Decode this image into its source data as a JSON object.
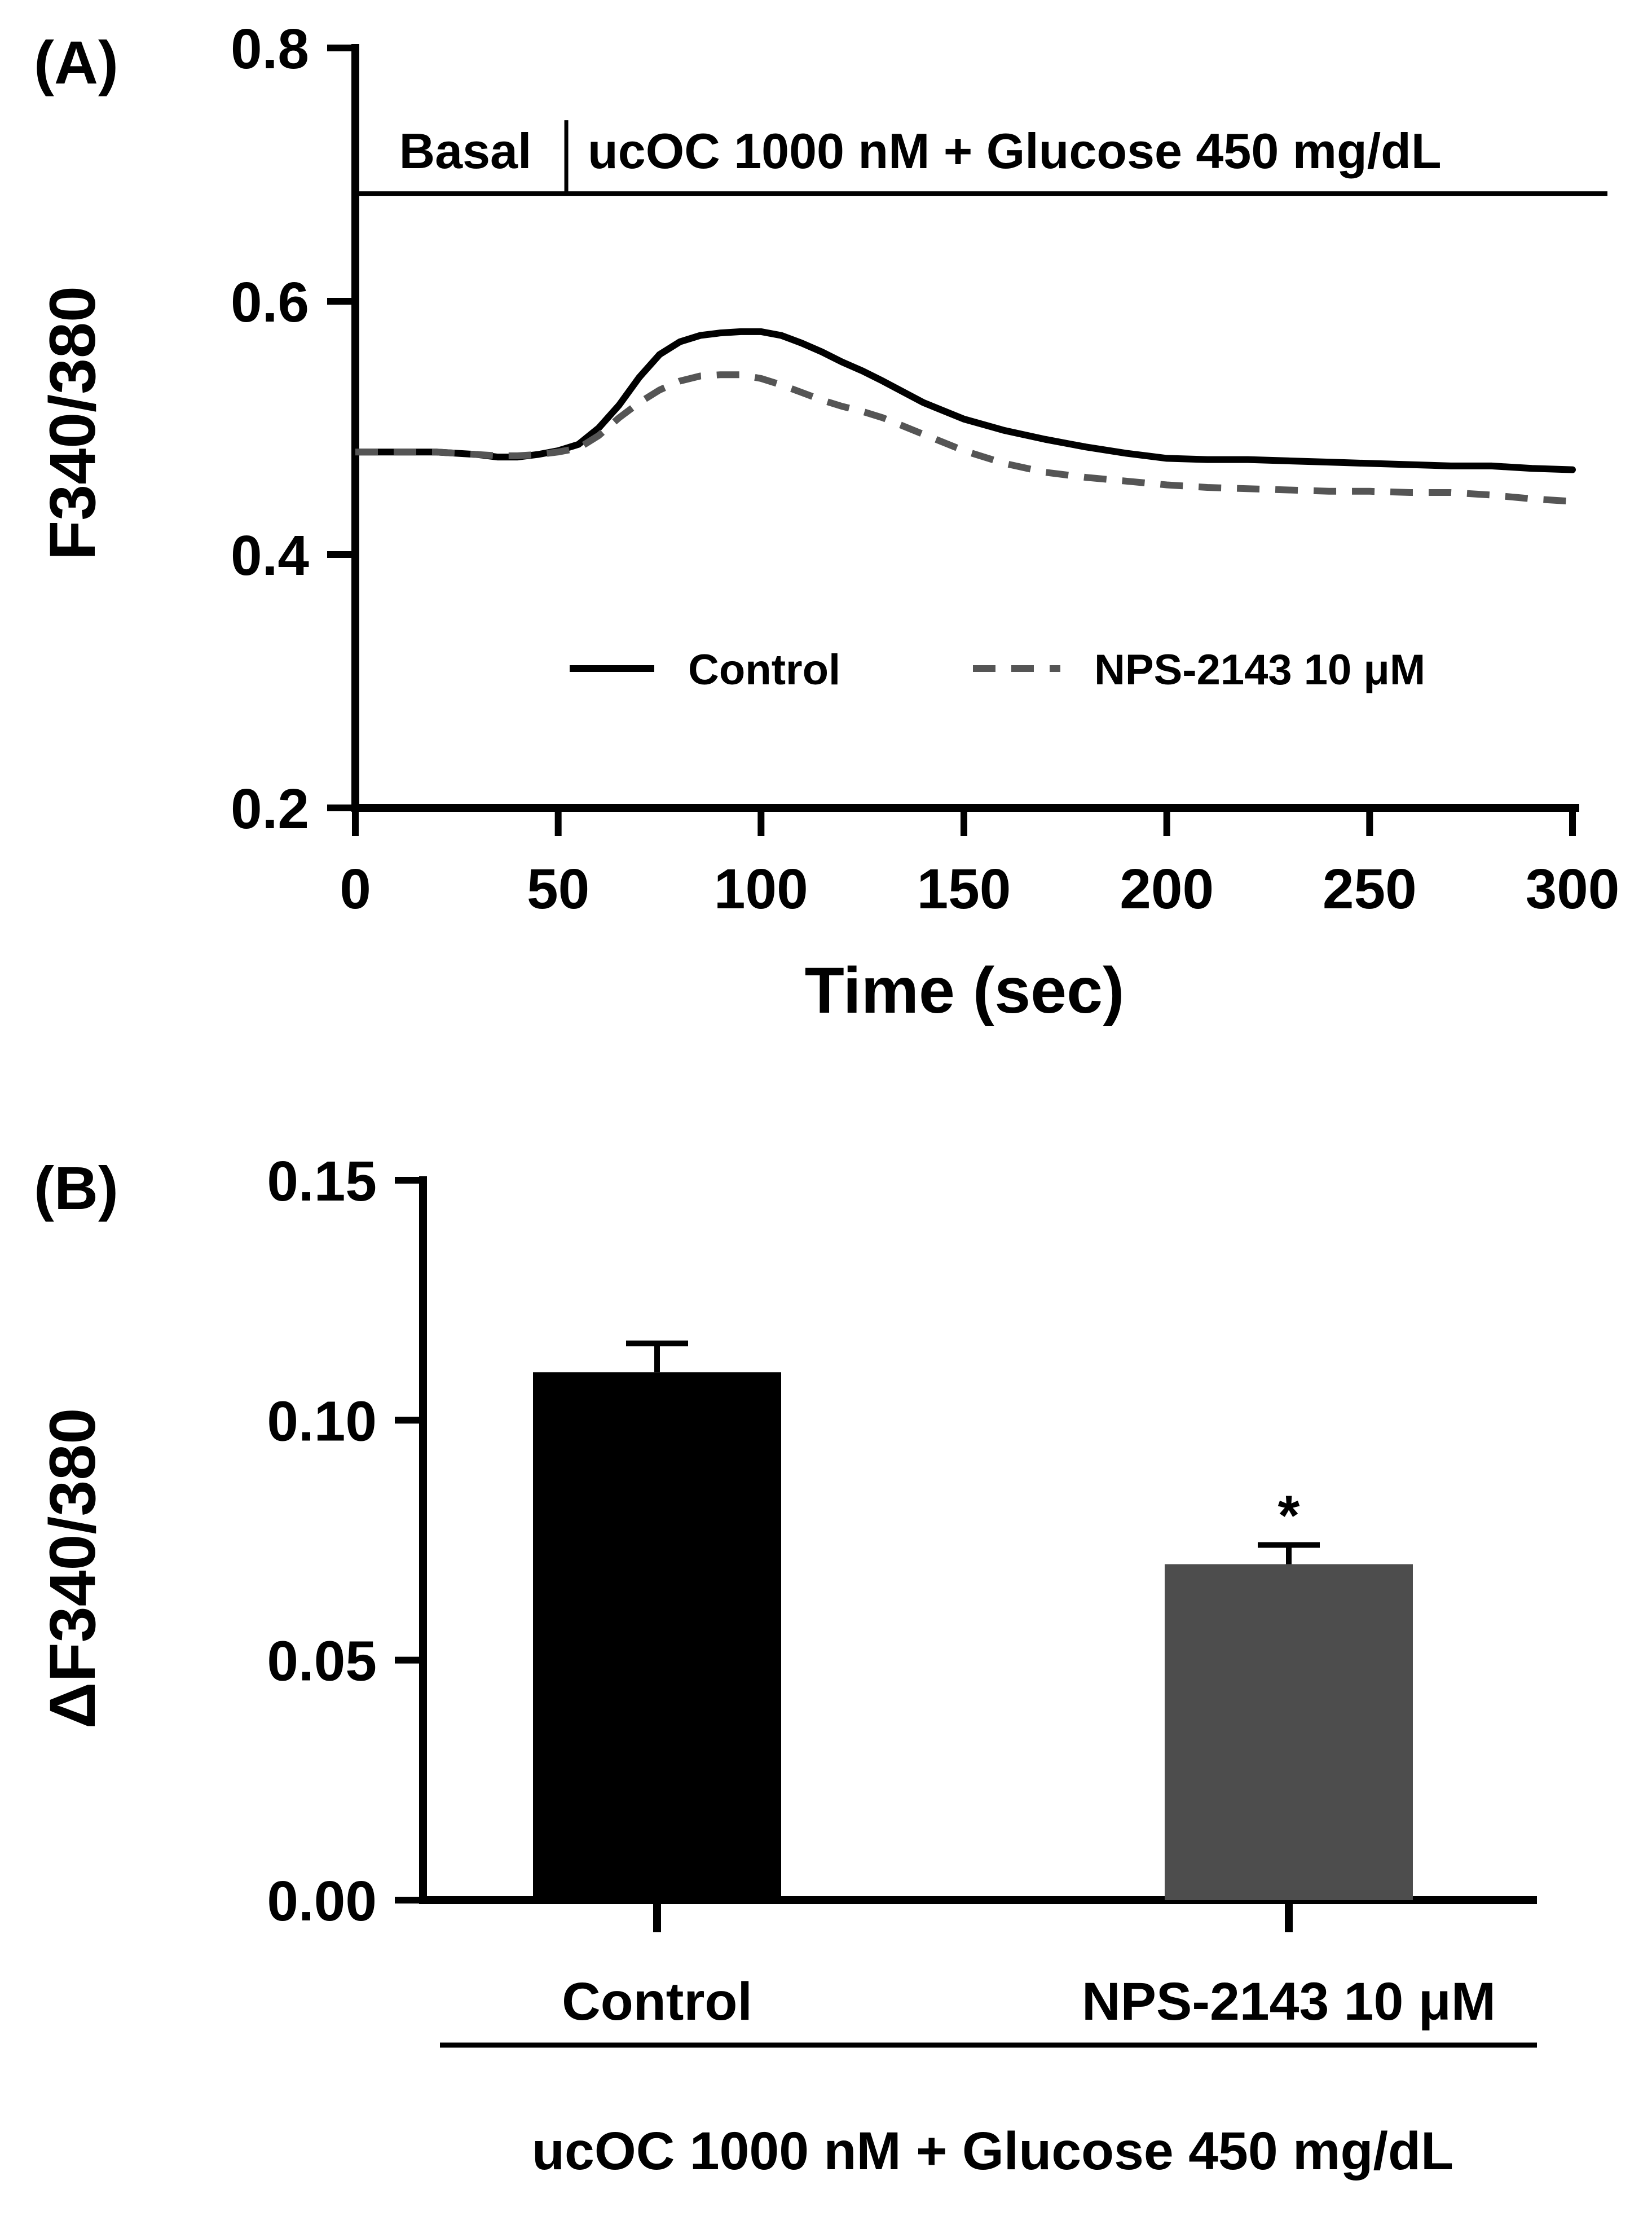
{
  "chart_data": [
    {
      "panel": "(A)",
      "type": "line",
      "title": "",
      "xlabel": "Time (sec)",
      "ylabel": "F340/380",
      "xlim": [
        0,
        300
      ],
      "ylim": [
        0.2,
        0.8
      ],
      "xticks": [
        0,
        50,
        100,
        150,
        200,
        250,
        300
      ],
      "xtick_labels": [
        "0",
        "50",
        "100",
        "150",
        "200",
        "250",
        "300"
      ],
      "yticks": [
        0.2,
        0.4,
        0.6,
        0.8
      ],
      "ytick_labels": [
        "0.2",
        "0.4",
        "0.6",
        "0.8"
      ],
      "grid": false,
      "legend_position": "lower-center",
      "annotations": {
        "basal_label": "Basal",
        "stim_label": "ucOC 1000 nM + Glucose 450 mg/dL",
        "bracket_y": 0.685,
        "divider_x": 52
      },
      "series": [
        {
          "name": "Control",
          "style": "solid",
          "color": "#000000",
          "x": [
            0,
            10,
            20,
            30,
            35,
            40,
            45,
            50,
            55,
            60,
            65,
            70,
            75,
            80,
            85,
            90,
            95,
            100,
            105,
            110,
            115,
            120,
            125,
            130,
            140,
            150,
            160,
            170,
            180,
            190,
            200,
            210,
            220,
            230,
            240,
            250,
            260,
            270,
            280,
            290,
            300
          ],
          "y": [
            0.481,
            0.481,
            0.481,
            0.479,
            0.477,
            0.477,
            0.479,
            0.482,
            0.487,
            0.5,
            0.518,
            0.54,
            0.558,
            0.568,
            0.573,
            0.575,
            0.576,
            0.576,
            0.573,
            0.567,
            0.56,
            0.552,
            0.545,
            0.537,
            0.52,
            0.507,
            0.498,
            0.491,
            0.485,
            0.48,
            0.476,
            0.475,
            0.475,
            0.474,
            0.473,
            0.472,
            0.471,
            0.47,
            0.47,
            0.468,
            0.467
          ]
        },
        {
          "name": "NPS-2143 10 μM",
          "style": "dashed",
          "color": "#555555",
          "x": [
            0,
            10,
            20,
            30,
            35,
            40,
            45,
            50,
            55,
            60,
            65,
            70,
            75,
            80,
            85,
            90,
            95,
            100,
            105,
            110,
            115,
            120,
            125,
            130,
            140,
            150,
            160,
            170,
            180,
            190,
            200,
            210,
            220,
            230,
            240,
            250,
            260,
            270,
            280,
            290,
            300
          ],
          "y": [
            0.481,
            0.481,
            0.481,
            0.479,
            0.478,
            0.478,
            0.479,
            0.481,
            0.484,
            0.494,
            0.508,
            0.52,
            0.53,
            0.537,
            0.541,
            0.542,
            0.542,
            0.539,
            0.534,
            0.528,
            0.522,
            0.517,
            0.513,
            0.508,
            0.495,
            0.482,
            0.472,
            0.465,
            0.461,
            0.458,
            0.455,
            0.453,
            0.452,
            0.451,
            0.45,
            0.45,
            0.449,
            0.449,
            0.447,
            0.444,
            0.442
          ]
        }
      ]
    },
    {
      "panel": "(B)",
      "type": "bar",
      "title": "",
      "xlabel": "ucOC 1000 nM + Glucose 450 mg/dL",
      "ylabel": "ΔF340/380",
      "categories": [
        "Control",
        "NPS-2143 10 μM"
      ],
      "values": [
        0.11,
        0.07
      ],
      "errors": [
        0.006,
        0.004
      ],
      "bar_colors": [
        "#000000",
        "#4d4d4d"
      ],
      "significance": [
        "",
        "*"
      ],
      "ylim": [
        0,
        0.15
      ],
      "yticks": [
        0,
        0.05,
        0.1,
        0.15
      ],
      "ytick_labels": [
        "0.00",
        "0.05",
        "0.10",
        "0.15"
      ],
      "grid": false
    }
  ]
}
